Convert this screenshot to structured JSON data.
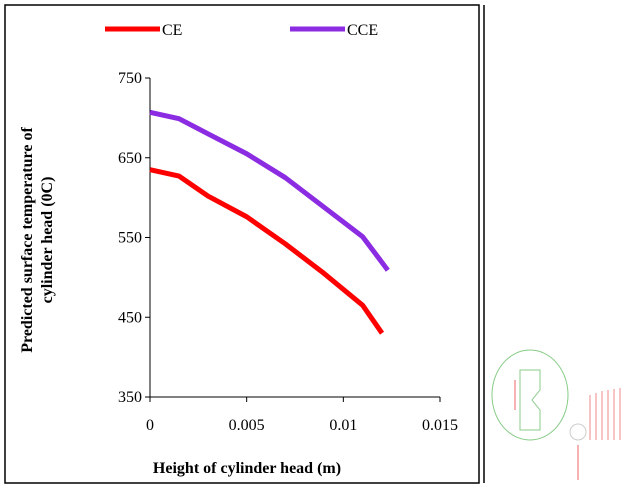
{
  "chart_data": {
    "type": "line",
    "y_label": [
      "Predicted surface temperature of",
      "cylinder head  (0C)"
    ],
    "x_label": "Height of cylinder head (m)",
    "xlim": [
      0,
      0.015
    ],
    "xticks": [
      0,
      0.005,
      0.01,
      0.015
    ],
    "ylim": [
      350,
      750
    ],
    "yticks": [
      350,
      450,
      550,
      650,
      750
    ],
    "legend": "top",
    "series": [
      {
        "name": "CE",
        "color": "#ff0000",
        "x": [
          0,
          0.0015,
          0.003,
          0.005,
          0.007,
          0.009,
          0.011,
          0.012
        ],
        "values": [
          635,
          627,
          602,
          576,
          542,
          505,
          465,
          430
        ]
      },
      {
        "name": "CCE",
        "color": "#8b2be2",
        "x": [
          0,
          0.0015,
          0.003,
          0.005,
          0.007,
          0.009,
          0.011,
          0.0123
        ],
        "values": [
          707,
          699,
          680,
          655,
          625,
          588,
          551,
          509
        ]
      }
    ]
  }
}
